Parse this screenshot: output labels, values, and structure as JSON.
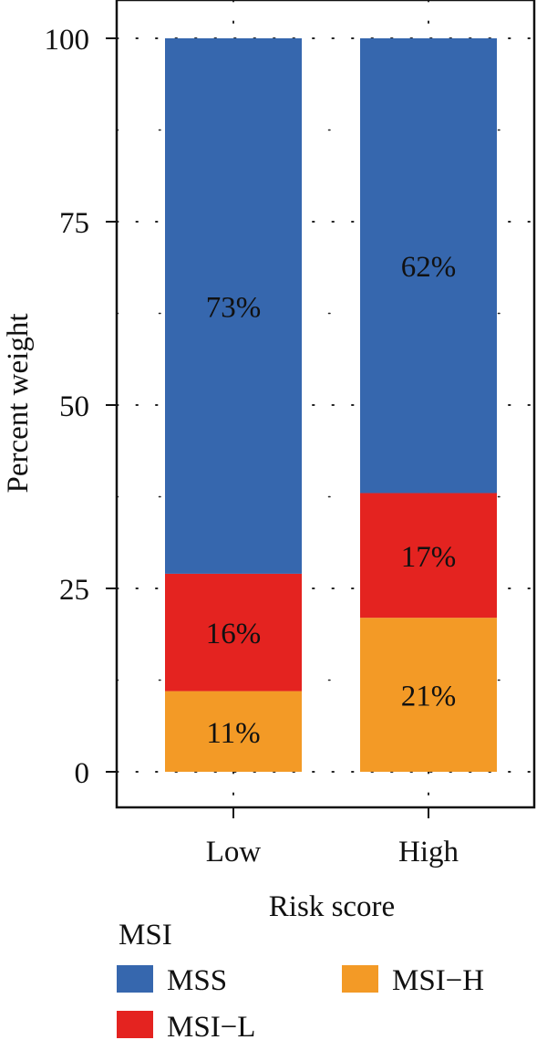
{
  "chart_data": {
    "type": "bar",
    "stacked": true,
    "categories": [
      "Low",
      "High"
    ],
    "series": [
      {
        "name": "MSI−H",
        "color": "#F39A26",
        "values": [
          11,
          21
        ],
        "labels": [
          "11%",
          "21%"
        ]
      },
      {
        "name": "MSI−L",
        "color": "#E42320",
        "values": [
          16,
          17
        ],
        "labels": [
          "16%",
          "17%"
        ]
      },
      {
        "name": "MSS",
        "color": "#3667AE",
        "values": [
          73,
          62
        ],
        "labels": [
          "73%",
          "62%"
        ]
      }
    ],
    "xlabel": "Risk score",
    "ylabel": "Percent weight",
    "ylim": [
      0,
      100
    ],
    "yticks": [
      0,
      25,
      50,
      75,
      100
    ],
    "ytick_labels": [
      "0",
      "25",
      "50",
      "75",
      "100"
    ],
    "grid": "dotted",
    "legend": {
      "title": "MSI",
      "placement": "bottom",
      "entries": [
        "MSS",
        "MSI−H",
        "MSI−L"
      ]
    }
  }
}
